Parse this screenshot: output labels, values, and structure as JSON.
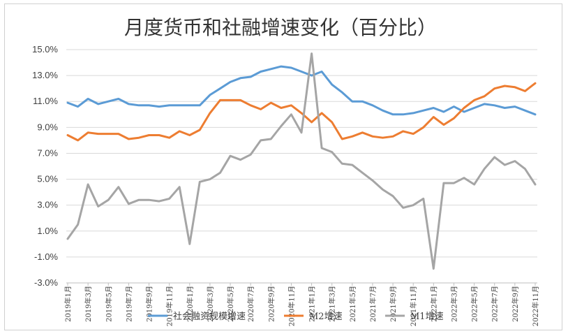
{
  "chart_data": {
    "type": "line",
    "title": "月度货币和社融增速变化（百分比）",
    "ylim": [
      -3.0,
      15.0
    ],
    "yticks": [
      "-3.0%",
      "-1.0%",
      "1.0%",
      "3.0%",
      "5.0%",
      "7.0%",
      "9.0%",
      "11.0%",
      "13.0%",
      "15.0%"
    ],
    "ytick_values": [
      -3,
      -1,
      1,
      3,
      5,
      7,
      9,
      11,
      13,
      15
    ],
    "x": [
      "2019年1月",
      "2019年2月",
      "2019年3月",
      "2019年4月",
      "2019年5月",
      "2019年6月",
      "2019年7月",
      "2019年8月",
      "2019年9月",
      "2019年10月",
      "2019年11月",
      "2019年12月",
      "2020年1月",
      "2020年2月",
      "2020年3月",
      "2020年4月",
      "2020年5月",
      "2020年6月",
      "2020年7月",
      "2020年8月",
      "2020年9月",
      "2020年10月",
      "2020年11月",
      "2020年12月",
      "2021年1月",
      "2021年2月",
      "2021年3月",
      "2021年4月",
      "2021年5月",
      "2021年6月",
      "2021年7月",
      "2021年8月",
      "2021年9月",
      "2021年10月",
      "2021年11月",
      "2021年12月",
      "2022年1月",
      "2022年2月",
      "2022年3月",
      "2022年4月",
      "2022年5月",
      "2022年6月",
      "2022年7月",
      "2022年8月",
      "2022年9月",
      "2022年10月",
      "2022年11月"
    ],
    "x_tick_labels": [
      "2019年1月",
      "2019年3月",
      "2019年5月",
      "2019年7月",
      "2019年9月",
      "2019年11月",
      "2020年1月",
      "2020年3月",
      "2020年5月",
      "2020年7月",
      "2020年9月",
      "2020年11月",
      "2021年1月",
      "2021年3月",
      "2021年5月",
      "2021年7月",
      "2021年9月",
      "2021年11月",
      "2022年1月",
      "2022年3月",
      "2022年5月",
      "2022年7月",
      "2022年9月",
      "2022年11月"
    ],
    "series": [
      {
        "name": "社会融资规模增速",
        "color": "#5b9bd5",
        "values": [
          10.9,
          10.6,
          11.2,
          10.8,
          11.0,
          11.2,
          10.8,
          10.7,
          10.7,
          10.6,
          10.7,
          10.7,
          10.7,
          10.7,
          11.5,
          12.0,
          12.5,
          12.8,
          12.9,
          13.3,
          13.5,
          13.7,
          13.6,
          13.3,
          13.0,
          13.3,
          12.3,
          11.7,
          11.0,
          11.0,
          10.7,
          10.3,
          10.0,
          10.0,
          10.1,
          10.3,
          10.5,
          10.2,
          10.6,
          10.2,
          10.5,
          10.8,
          10.7,
          10.5,
          10.6,
          10.3,
          10.0
        ]
      },
      {
        "name": "M2增速",
        "color": "#ed7d31",
        "values": [
          8.4,
          8.0,
          8.6,
          8.5,
          8.5,
          8.5,
          8.1,
          8.2,
          8.4,
          8.4,
          8.2,
          8.7,
          8.4,
          8.8,
          10.1,
          11.1,
          11.1,
          11.1,
          10.7,
          10.4,
          10.9,
          10.5,
          10.7,
          10.1,
          9.4,
          10.1,
          9.4,
          8.1,
          8.3,
          8.6,
          8.3,
          8.2,
          8.3,
          8.7,
          8.5,
          9.0,
          9.8,
          9.2,
          9.7,
          10.5,
          11.1,
          11.4,
          12.0,
          12.2,
          12.1,
          11.8,
          12.4
        ]
      },
      {
        "name": "M1增速",
        "color": "#a5a5a5",
        "values": [
          0.4,
          1.5,
          4.6,
          2.9,
          3.4,
          4.4,
          3.1,
          3.4,
          3.4,
          3.3,
          3.5,
          4.4,
          0.0,
          4.8,
          5.0,
          5.5,
          6.8,
          6.5,
          6.9,
          8.0,
          8.1,
          9.1,
          10.0,
          8.6,
          14.7,
          7.4,
          7.1,
          6.2,
          6.1,
          5.5,
          4.9,
          4.2,
          3.7,
          2.8,
          3.0,
          3.5,
          -1.9,
          4.7,
          4.7,
          5.1,
          4.6,
          5.8,
          6.7,
          6.1,
          6.4,
          5.8,
          4.6
        ]
      }
    ],
    "legend_position": "bottom",
    "grid": true
  }
}
